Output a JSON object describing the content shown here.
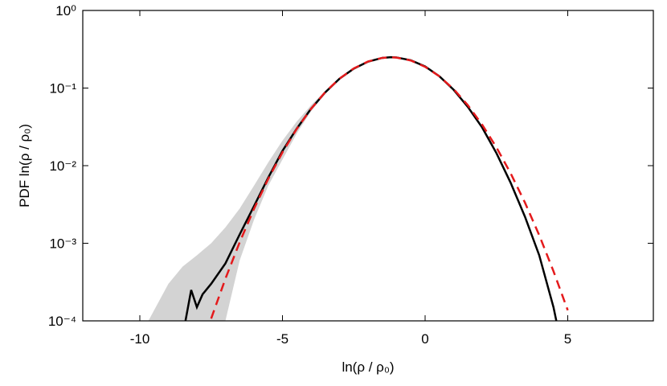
{
  "chart_data": {
    "type": "line",
    "xlabel": "ln(ρ / ρ₀)",
    "ylabel": "PDF ln(ρ / ρ₀)",
    "xlim": [
      -12,
      8
    ],
    "ylim": [
      0.0001,
      1
    ],
    "log_y": true,
    "xticks": [
      -10,
      -5,
      0,
      5
    ],
    "yticks": [
      {
        "value": 1,
        "label": "10⁰"
      },
      {
        "value": 0.1,
        "label": "10⁻¹"
      },
      {
        "value": 0.01,
        "label": "10⁻²"
      },
      {
        "value": 0.001,
        "label": "10⁻³"
      },
      {
        "value": 0.0001,
        "label": "10⁻⁴"
      }
    ],
    "band": {
      "color": "#d3d3d3",
      "x": [
        -9.7,
        -9,
        -8.5,
        -8,
        -7.5,
        -7,
        -6.5,
        -6,
        -5.5,
        -5,
        -4.5,
        -4,
        -3.5,
        -3
      ],
      "lower": [
        0.0001,
        0.0001,
        0.0001,
        0.0001,
        0.0001,
        0.0001,
        0.0006,
        0.002,
        0.0055,
        0.012,
        0.026,
        0.05,
        0.085,
        0.13
      ],
      "upper": [
        0.0001,
        0.0003,
        0.0005,
        0.0007,
        0.001,
        0.0016,
        0.0028,
        0.0055,
        0.011,
        0.021,
        0.037,
        0.06,
        0.092,
        0.134
      ]
    },
    "series": [
      {
        "color": "#000000",
        "style": "solid",
        "x": [
          -8.4,
          -8.2,
          -8,
          -7.8,
          -7.5,
          -7,
          -6.5,
          -6,
          -5.5,
          -5,
          -4.5,
          -4,
          -3.5,
          -3,
          -2.5,
          -2,
          -1.5,
          -1.2,
          -1,
          -0.5,
          0,
          0.5,
          1,
          1.5,
          2,
          2.5,
          3,
          3.5,
          4,
          4.5,
          4.6
        ],
        "values": [
          0.0001,
          0.00025,
          0.00015,
          0.00022,
          0.0003,
          0.00055,
          0.0013,
          0.003,
          0.007,
          0.0155,
          0.03,
          0.054,
          0.088,
          0.132,
          0.178,
          0.219,
          0.245,
          0.25,
          0.248,
          0.228,
          0.19,
          0.142,
          0.095,
          0.057,
          0.031,
          0.0145,
          0.006,
          0.0022,
          0.0007,
          0.00015,
          0.0001
        ]
      },
      {
        "color": "#e41a1c",
        "style": "dashed",
        "x": [
          -7.5,
          -7,
          -6.5,
          -6,
          -5.5,
          -5,
          -4.5,
          -4,
          -3.5,
          -3,
          -2.5,
          -2,
          -1.5,
          -1.2,
          -1,
          -0.5,
          0,
          0.5,
          1,
          1.5,
          2,
          2.5,
          3,
          3.5,
          4,
          4.5,
          5
        ],
        "values": [
          0.000107,
          0.000349,
          0.00103,
          0.00277,
          0.00674,
          0.01486,
          0.0297,
          0.0539,
          0.0887,
          0.1324,
          0.1793,
          0.22,
          0.245,
          0.249,
          0.247,
          0.2265,
          0.188,
          0.1418,
          0.0969,
          0.06,
          0.0337,
          0.0172,
          0.00795,
          0.00334,
          0.00127,
          0.000436,
          0.000137
        ]
      }
    ]
  }
}
